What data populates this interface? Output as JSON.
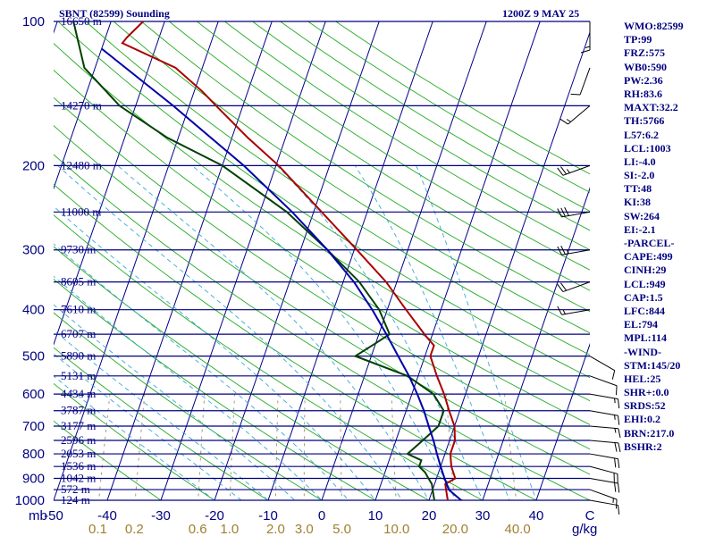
{
  "header": {
    "title_left": "SBNT (82599) Sounding",
    "title_right": "1200Z  9 MAY 25"
  },
  "indices": [
    "WMO:82599",
    "TP:99",
    "FRZ:575",
    "WB0:590",
    "PW:2.36",
    "RH:83.6",
    "MAXT:32.2",
    "TH:5766",
    "L57:6.2",
    "LCL:1003",
    "LI:-4.0",
    "SI:-2.0",
    "TT:48",
    "KI:38",
    "SW:264",
    "EI:-2.1",
    "-PARCEL-",
    "CAPE:499",
    "CINH:29",
    "LCL:949",
    "CAP:1.5",
    "LFC:844",
    "EL:794",
    "MPL:114",
    "-WIND-",
    "STM:145/20",
    "HEL:25",
    "SHR+:0.0",
    "SRDS:52",
    "EHI:0.2",
    "BRN:217.0",
    "BSHR:2"
  ],
  "chart_data": {
    "type": "line",
    "title": "SBNT (82599) Sounding",
    "subtitle": "1200Z  9 MAY 25",
    "xlabel_unit": "mb",
    "mixing_ratio_unit": "g/kg",
    "xlim": [
      -50,
      50
    ],
    "ylim": [
      1000,
      100
    ],
    "y_scale": "log",
    "pressure_ticks": [
      100,
      200,
      300,
      400,
      500,
      600,
      700,
      800,
      900,
      1000
    ],
    "temperature_ticks": [
      -50,
      -40,
      -30,
      -20,
      -10,
      0,
      10,
      20,
      30,
      40,
      50
    ],
    "temperature_tick_labels": [
      "-50",
      "-40",
      "-30",
      "-20",
      "-10",
      "0",
      "10",
      "20",
      "30",
      "40",
      "C"
    ],
    "mixing_ratio_labels": [
      "0.1",
      "0.2",
      "0.6",
      "1.0",
      "2.0",
      "3.0",
      "5.0",
      "10.0",
      "20.0",
      "40.0"
    ],
    "height_levels": [
      {
        "p": 100,
        "label": "16650 m"
      },
      {
        "p": 150,
        "label": "14270 m"
      },
      {
        "p": 200,
        "label": "12480 m"
      },
      {
        "p": 250,
        "label": "11000 m"
      },
      {
        "p": 300,
        "label": "9730 m"
      },
      {
        "p": 350,
        "label": "8605 m"
      },
      {
        "p": 400,
        "label": "7610 m"
      },
      {
        "p": 450,
        "label": "6707 m"
      },
      {
        "p": 500,
        "label": "5890 m"
      },
      {
        "p": 550,
        "label": "5131 m"
      },
      {
        "p": 600,
        "label": "4434 m"
      },
      {
        "p": 650,
        "label": "3787 m"
      },
      {
        "p": 700,
        "label": "3177 m"
      },
      {
        "p": 750,
        "label": "2596 m"
      },
      {
        "p": 800,
        "label": "2053 m"
      },
      {
        "p": 850,
        "label": "1536 m"
      },
      {
        "p": 900,
        "label": "1042 m"
      },
      {
        "p": 950,
        "label": "572 m"
      },
      {
        "p": 1000,
        "label": "124 m"
      }
    ],
    "series": [
      {
        "role": "temperature",
        "color": "#aa0000",
        "points": [
          [
            1010,
            24.0
          ],
          [
            1000,
            23.5
          ],
          [
            975,
            23.0
          ],
          [
            950,
            22.5
          ],
          [
            925,
            22.0
          ],
          [
            900,
            23.5
          ],
          [
            850,
            22.0
          ],
          [
            800,
            21.0
          ],
          [
            750,
            21.0
          ],
          [
            700,
            20.0
          ],
          [
            650,
            18.0
          ],
          [
            600,
            16.0
          ],
          [
            550,
            13.5
          ],
          [
            500,
            11.0
          ],
          [
            475,
            11.0
          ],
          [
            460,
            9.5
          ],
          [
            450,
            8.5
          ],
          [
            400,
            3.5
          ],
          [
            350,
            -2.0
          ],
          [
            300,
            -9.5
          ],
          [
            250,
            -18.5
          ],
          [
            200,
            -29.5
          ],
          [
            175,
            -37.0
          ],
          [
            150,
            -45.0
          ],
          [
            140,
            -48.5
          ],
          [
            125,
            -55.0
          ],
          [
            111,
            -66.5
          ],
          [
            108,
            -66.0
          ],
          [
            100,
            -64.0
          ]
        ]
      },
      {
        "role": "dewpoint",
        "color": "#004000",
        "points": [
          [
            1010,
            21.5
          ],
          [
            1000,
            21.0
          ],
          [
            975,
            20.5
          ],
          [
            950,
            20.0
          ],
          [
            925,
            19.5
          ],
          [
            900,
            18.5
          ],
          [
            875,
            17.5
          ],
          [
            850,
            16.0
          ],
          [
            825,
            16.0
          ],
          [
            800,
            13.0
          ],
          [
            750,
            15.0
          ],
          [
            725,
            16.0
          ],
          [
            700,
            17.0
          ],
          [
            650,
            17.0
          ],
          [
            600,
            14.0
          ],
          [
            550,
            8.0
          ],
          [
            500,
            -3.0
          ],
          [
            470,
            0.0
          ],
          [
            450,
            2.0
          ],
          [
            400,
            -1.5
          ],
          [
            350,
            -7.0
          ],
          [
            300,
            -15.0
          ],
          [
            250,
            -25.0
          ],
          [
            200,
            -40.0
          ],
          [
            175,
            -52.0
          ],
          [
            150,
            -63.0
          ],
          [
            125,
            -72.0
          ],
          [
            100,
            -77.0
          ]
        ]
      },
      {
        "role": "parcel",
        "color": "#0000aa",
        "points": [
          [
            1010,
            27.5
          ],
          [
            1000,
            26.0
          ],
          [
            950,
            23.0
          ],
          [
            900,
            21.5
          ],
          [
            850,
            20.0
          ],
          [
            800,
            18.5
          ],
          [
            750,
            17.0
          ],
          [
            700,
            15.2
          ],
          [
            650,
            13.3
          ],
          [
            600,
            11.0
          ],
          [
            550,
            8.3
          ],
          [
            500,
            5.0
          ],
          [
            450,
            1.4
          ],
          [
            400,
            -2.8
          ],
          [
            350,
            -8.0
          ],
          [
            300,
            -15.0
          ],
          [
            250,
            -24.0
          ],
          [
            200,
            -36.0
          ],
          [
            150,
            -53.0
          ],
          [
            114,
            -70.0
          ]
        ]
      }
    ],
    "wind_barbs": [
      {
        "p": 1000,
        "dir": 100,
        "spd": 10
      },
      {
        "p": 950,
        "dir": 110,
        "spd": 15
      },
      {
        "p": 900,
        "dir": 100,
        "spd": 20
      },
      {
        "p": 850,
        "dir": 105,
        "spd": 20
      },
      {
        "p": 800,
        "dir": 100,
        "spd": 20
      },
      {
        "p": 750,
        "dir": 95,
        "spd": 20
      },
      {
        "p": 700,
        "dir": 95,
        "spd": 15
      },
      {
        "p": 650,
        "dir": 100,
        "spd": 15
      },
      {
        "p": 600,
        "dir": 100,
        "spd": 15
      },
      {
        "p": 550,
        "dir": 110,
        "spd": 10
      },
      {
        "p": 500,
        "dir": 120,
        "spd": 10
      },
      {
        "p": 400,
        "dir": 260,
        "spd": 15
      },
      {
        "p": 350,
        "dir": 250,
        "spd": 20
      },
      {
        "p": 300,
        "dir": 260,
        "spd": 25
      },
      {
        "p": 250,
        "dir": 260,
        "spd": 30
      },
      {
        "p": 200,
        "dir": 250,
        "spd": 25
      },
      {
        "p": 150,
        "dir": 230,
        "spd": 15
      },
      {
        "p": 125,
        "dir": 200,
        "spd": 10
      },
      {
        "p": 100,
        "dir": 180,
        "spd": 15
      }
    ]
  }
}
